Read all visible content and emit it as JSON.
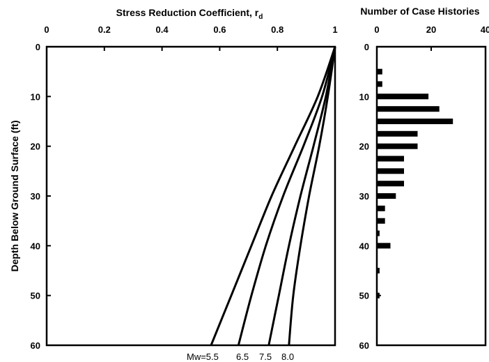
{
  "chart_data": [
    {
      "type": "line",
      "title": "",
      "xlabel": "Stress Reduction Coefficient, r",
      "xlabel_subscript": "d",
      "ylabel": "Depth Below Ground Surface (ft)",
      "xlim": [
        0,
        1
      ],
      "ylim": [
        0,
        60
      ],
      "y_inverted": true,
      "x_axis_position": "top",
      "x_ticks": [
        "0",
        "0.2",
        "0.4",
        "0.6",
        "0.8",
        "1"
      ],
      "y_ticks": [
        "0",
        "10",
        "20",
        "30",
        "40",
        "50",
        "60"
      ],
      "grid": false,
      "legend": "none",
      "series_labels": [
        "Mw=5.5",
        "6.5",
        "7.5",
        "8.0"
      ],
      "series": [
        {
          "name": "Mw=5.5",
          "x": [
            1.0,
            0.94,
            0.86,
            0.78,
            0.71,
            0.64,
            0.57
          ],
          "y": [
            0,
            10,
            20,
            30,
            40,
            50,
            60
          ]
        },
        {
          "name": "6.5",
          "x": [
            1.0,
            0.955,
            0.89,
            0.82,
            0.76,
            0.71,
            0.665
          ],
          "y": [
            0,
            10,
            20,
            30,
            40,
            50,
            60
          ]
        },
        {
          "name": "7.5",
          "x": [
            1.0,
            0.968,
            0.925,
            0.88,
            0.84,
            0.805,
            0.77
          ],
          "y": [
            0,
            10,
            20,
            30,
            40,
            50,
            60
          ]
        },
        {
          "name": "8.0",
          "x": [
            1.0,
            0.975,
            0.945,
            0.91,
            0.88,
            0.855,
            0.84
          ],
          "y": [
            0,
            10,
            20,
            30,
            40,
            50,
            60
          ]
        }
      ]
    },
    {
      "type": "bar",
      "orientation": "horizontal",
      "title": "",
      "xlabel": "Number of Case Histories",
      "ylabel": "",
      "xlim": [
        0,
        40
      ],
      "ylim": [
        0,
        60
      ],
      "y_inverted": true,
      "x_axis_position": "top",
      "x_ticks": [
        "0",
        "20",
        "40"
      ],
      "y_ticks": [
        "0",
        "10",
        "20",
        "30",
        "40",
        "50",
        "60"
      ],
      "grid": false,
      "legend": "none",
      "depths": [
        5,
        7.5,
        10,
        12.5,
        15,
        17.5,
        20,
        22.5,
        25,
        27.5,
        30,
        32.5,
        35,
        37.5,
        40,
        45,
        50
      ],
      "values": [
        2,
        2,
        19,
        23,
        28,
        15,
        15,
        10,
        10,
        10,
        7,
        3,
        3,
        1,
        5,
        1,
        1
      ]
    }
  ]
}
